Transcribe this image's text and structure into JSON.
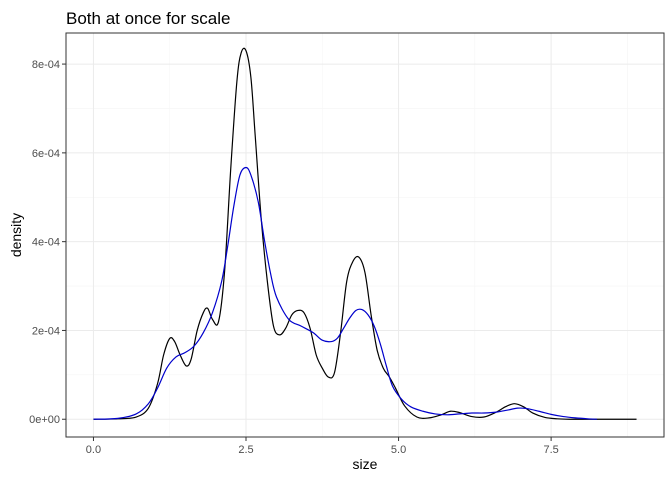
{
  "chart_data": {
    "type": "line",
    "title": "Both at once for scale",
    "xlabel": "size",
    "ylabel": "density",
    "xlim": [
      -0.45,
      9.35
    ],
    "ylim": [
      -4e-05,
      0.00087
    ],
    "x_ticks": [
      0.0,
      2.5,
      5.0,
      7.5
    ],
    "x_tick_labels": [
      "0.0",
      "2.5",
      "5.0",
      "7.5"
    ],
    "y_ticks": [
      0,
      0.0002,
      0.0004,
      0.0006,
      0.0008
    ],
    "y_tick_labels": [
      "0e+00",
      "2e-04",
      "4e-04",
      "6e-04",
      "8e-04"
    ],
    "grid": true,
    "legend": "none",
    "series": [
      {
        "color": "#000000",
        "x": [
          0.0,
          0.4,
          0.7,
          0.9,
          1.05,
          1.15,
          1.25,
          1.33,
          1.42,
          1.52,
          1.6,
          1.7,
          1.8,
          1.87,
          1.95,
          2.05,
          2.15,
          2.25,
          2.35,
          2.42,
          2.5,
          2.58,
          2.65,
          2.75,
          2.85,
          2.95,
          3.05,
          3.15,
          3.25,
          3.35,
          3.45,
          3.55,
          3.65,
          3.75,
          3.85,
          3.95,
          4.05,
          4.15,
          4.25,
          4.35,
          4.45,
          4.55,
          4.65,
          4.75,
          4.85,
          4.95,
          5.1,
          5.3,
          5.5,
          5.7,
          5.85,
          6.0,
          6.2,
          6.4,
          6.6,
          6.75,
          6.9,
          7.05,
          7.2,
          7.4,
          7.6,
          7.8,
          8.1,
          8.5,
          8.9
        ],
        "y": [
          0.0,
          1e-06,
          5e-06,
          2.5e-05,
          8e-05,
          0.000145,
          0.000182,
          0.000175,
          0.000145,
          0.00012,
          0.000135,
          0.0002,
          0.00024,
          0.00025,
          0.000225,
          0.00022,
          0.000335,
          0.000565,
          0.00076,
          0.000825,
          0.00083,
          0.00077,
          0.00064,
          0.00045,
          0.00031,
          0.00021,
          0.00019,
          0.000205,
          0.000235,
          0.000245,
          0.00024,
          0.000205,
          0.000145,
          0.000115,
          9.5e-05,
          0.000105,
          0.000195,
          0.00031,
          0.000355,
          0.000365,
          0.00033,
          0.000235,
          0.000155,
          0.000115,
          9.5e-05,
          7e-05,
          3e-05,
          5e-06,
          3e-06,
          1e-05,
          1.8e-05,
          1.5e-05,
          6e-06,
          5e-06,
          1.6e-05,
          2.8e-05,
          3.5e-05,
          2.8e-05,
          1.4e-05,
          4e-06,
          1e-06,
          0.0,
          0.0,
          0.0,
          0.0
        ]
      },
      {
        "color": "#0000cc",
        "x": [
          0.0,
          0.4,
          0.7,
          0.9,
          1.05,
          1.2,
          1.35,
          1.5,
          1.65,
          1.8,
          1.95,
          2.1,
          2.2,
          2.3,
          2.4,
          2.5,
          2.58,
          2.7,
          2.8,
          2.9,
          3.0,
          3.2,
          3.4,
          3.6,
          3.75,
          3.9,
          4.0,
          4.1,
          4.2,
          4.3,
          4.4,
          4.5,
          4.6,
          4.7,
          4.8,
          4.9,
          5.05,
          5.2,
          5.4,
          5.6,
          5.8,
          6.0,
          6.2,
          6.4,
          6.6,
          6.8,
          6.95,
          7.1,
          7.3,
          7.5,
          7.7,
          7.9,
          8.1,
          8.25
        ],
        "y": [
          0.0,
          2e-06,
          1.2e-05,
          3.5e-05,
          7e-05,
          0.000115,
          0.00014,
          0.00015,
          0.000165,
          0.000195,
          0.00024,
          0.00031,
          0.00039,
          0.00048,
          0.00055,
          0.000567,
          0.00055,
          0.00049,
          0.000405,
          0.00033,
          0.000275,
          0.000225,
          0.00021,
          0.000195,
          0.000178,
          0.000175,
          0.000183,
          0.000205,
          0.000228,
          0.000245,
          0.000247,
          0.000235,
          0.00021,
          0.00017,
          0.00012,
          7.5e-05,
          4.5e-05,
          2.8e-05,
          1.8e-05,
          1.2e-05,
          1e-05,
          1.2e-05,
          1.4e-05,
          1.4e-05,
          1.6e-05,
          2.1e-05,
          2.5e-05,
          2.4e-05,
          1.8e-05,
          1.1e-05,
          6e-06,
          3e-06,
          1e-06,
          0.0
        ]
      }
    ]
  }
}
